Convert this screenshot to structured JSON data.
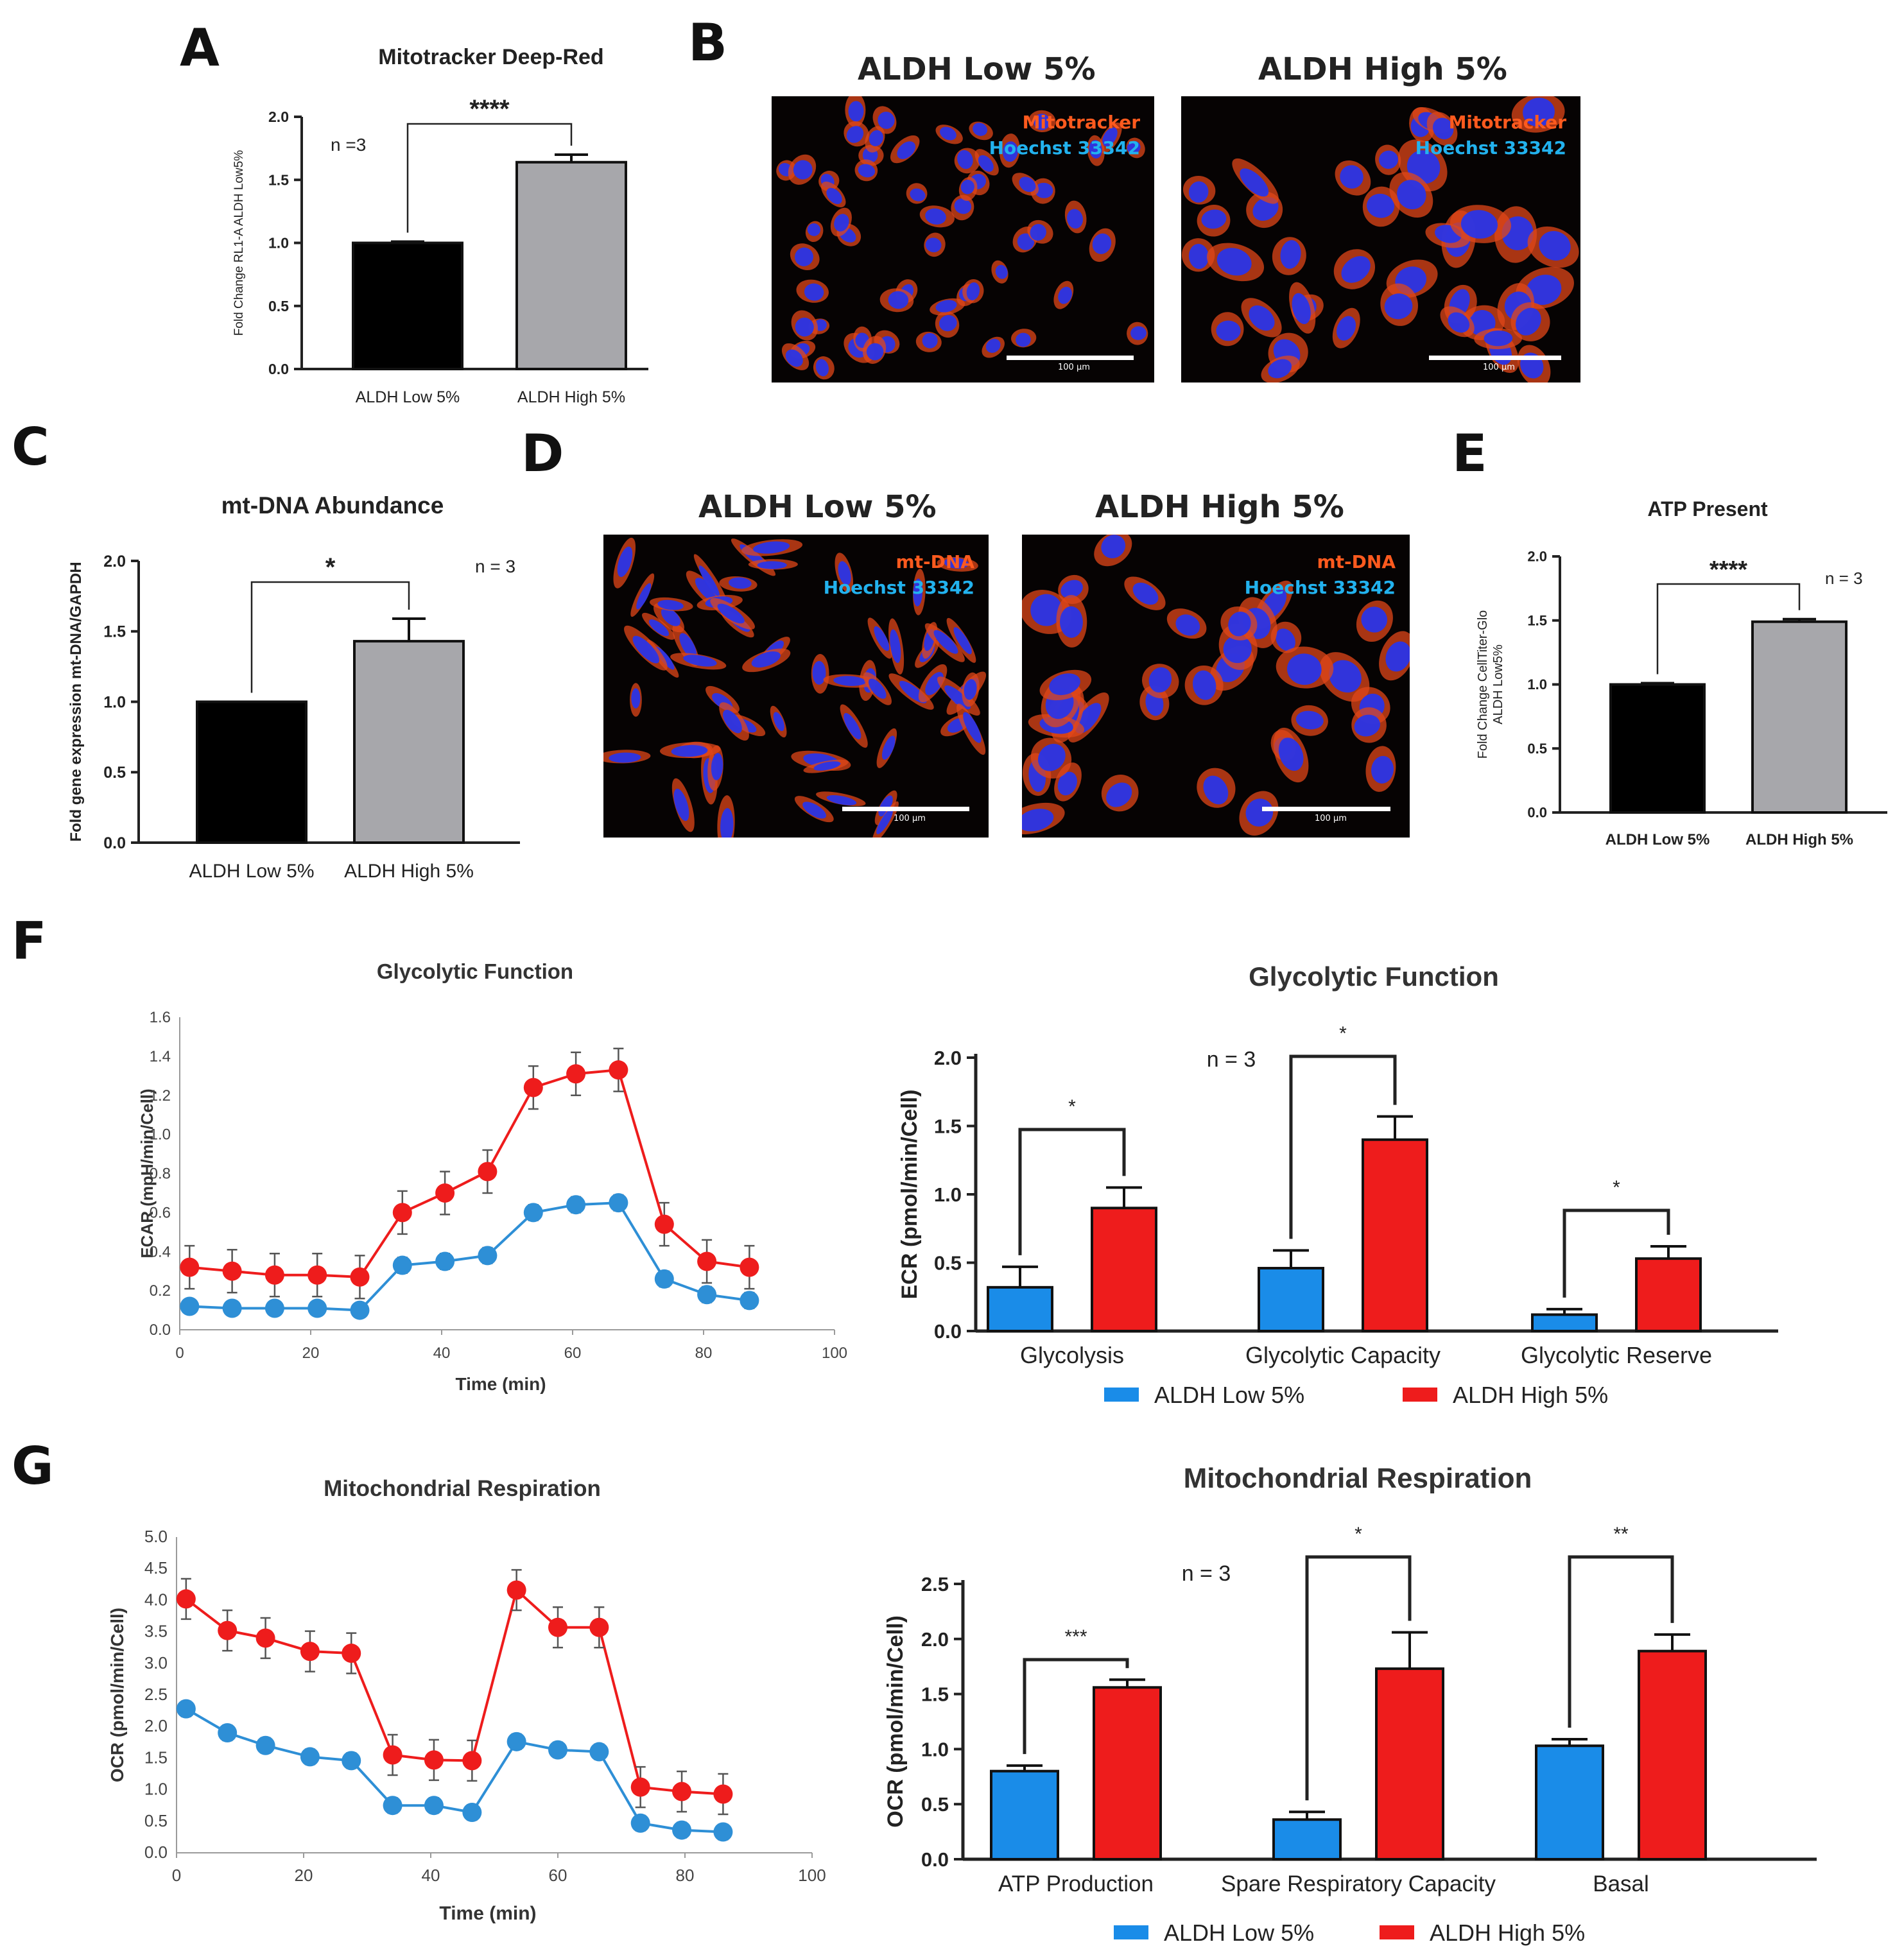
{
  "panels": {
    "A": {
      "letter": "A",
      "chart_data": {
        "type": "bar",
        "title": "Mitotracker Deep-Red",
        "ylabel": "Fold Change RL1-A ALDH Low5%",
        "categories": [
          "ALDH Low 5%",
          "ALDH High 5%"
        ],
        "values": [
          1.0,
          1.64
        ],
        "errors": [
          0.01,
          0.06
        ],
        "colors": [
          "#000000",
          "#a7a7ab"
        ],
        "ylim": [
          0,
          2.0
        ],
        "yticks": [
          "0.0",
          "0.5",
          "1.0",
          "1.5",
          "2.0"
        ],
        "n_label": "n =3",
        "significance": "****"
      }
    },
    "B": {
      "letter": "B",
      "images": [
        {
          "title": "ALDH Low 5%",
          "stain_red": "Mitotracker",
          "stain_blue": "Hoechst 33342",
          "scale": "100 µm"
        },
        {
          "title": "ALDH High 5%",
          "stain_red": "Mitotracker",
          "stain_blue": "Hoechst 33342",
          "scale": "100 µm"
        }
      ]
    },
    "C": {
      "letter": "C",
      "chart_data": {
        "type": "bar",
        "title": "mt-DNA Abundance",
        "ylabel": "Fold gene expression mt-DNA/GAPDH",
        "categories": [
          "ALDH Low 5%",
          "ALDH High 5%"
        ],
        "values": [
          1.0,
          1.43
        ],
        "errors": [
          0.0,
          0.16
        ],
        "colors": [
          "#000000",
          "#a7a7ab"
        ],
        "ylim": [
          0,
          2.0
        ],
        "yticks": [
          "0.0",
          "0.5",
          "1.0",
          "1.5",
          "2.0"
        ],
        "n_label": "n = 3",
        "significance": "*"
      }
    },
    "D": {
      "letter": "D",
      "images": [
        {
          "title": "ALDH Low 5%",
          "stain_red": "mt-DNA",
          "stain_blue": "Hoechst 33342",
          "scale": "100 µm"
        },
        {
          "title": "ALDH High 5%",
          "stain_red": "mt-DNA",
          "stain_blue": "Hoechst 33342",
          "scale": "100 µm"
        }
      ]
    },
    "E": {
      "letter": "E",
      "chart_data": {
        "type": "bar",
        "title": "ATP Present",
        "ylabel": "Fold Change CellTiter-Glo",
        "ylabel2": "ALDH Low5%",
        "categories": [
          "ALDH Low 5%",
          "ALDH High 5%"
        ],
        "values": [
          1.0,
          1.49
        ],
        "errors": [
          0.01,
          0.02
        ],
        "colors": [
          "#000000",
          "#a7a7ab"
        ],
        "ylim": [
          0,
          2.0
        ],
        "yticks": [
          "0.0",
          "0.5",
          "1.0",
          "1.5",
          "2.0"
        ],
        "n_label": "n = 3",
        "significance": "****"
      }
    },
    "F": {
      "letter": "F",
      "line": {
        "chart_data": {
          "type": "line",
          "title": "Glycolytic Function",
          "xlabel": "Time (min)",
          "ylabel": "ECAR (mpH/min/Cell)",
          "xlim": [
            0,
            100
          ],
          "ylim": [
            0,
            1.6
          ],
          "xticks": [
            "0",
            "20",
            "40",
            "60",
            "80",
            "100"
          ],
          "yticks": [
            "0.0",
            "0.2",
            "0.4",
            "0.6",
            "0.8",
            "1.0",
            "1.2",
            "1.4",
            "1.6"
          ],
          "x": [
            1.5,
            8,
            14.5,
            21,
            27.5,
            34,
            40.5,
            47,
            54,
            60.5,
            67,
            74,
            80.5,
            87
          ],
          "series": [
            {
              "name": "ALDH Low 5%",
              "color": "#2e8fd6",
              "values": [
                0.12,
                0.11,
                0.11,
                0.11,
                0.1,
                0.33,
                0.35,
                0.38,
                0.6,
                0.64,
                0.65,
                0.26,
                0.18,
                0.15
              ],
              "errors": [
                0.03,
                0.03,
                0.03,
                0.03,
                0.03,
                0.04,
                0.04,
                0.04,
                0.04,
                0.04,
                0.04,
                0.04,
                0.04,
                0.04
              ]
            },
            {
              "name": "ALDH High 5%",
              "color": "#ee1c1c",
              "values": [
                0.32,
                0.3,
                0.28,
                0.28,
                0.27,
                0.6,
                0.7,
                0.81,
                1.24,
                1.31,
                1.33,
                0.54,
                0.35,
                0.32
              ],
              "errors": [
                0.11,
                0.11,
                0.11,
                0.11,
                0.11,
                0.11,
                0.11,
                0.11,
                0.11,
                0.11,
                0.11,
                0.11,
                0.11,
                0.11
              ]
            }
          ]
        }
      },
      "bar": {
        "chart_data": {
          "type": "bar",
          "title": "Glycolytic Function",
          "ylabel": "ECR (pmol/min/Cell)",
          "categories": [
            "Glycolysis",
            "Glycolytic Capacity",
            "Glycolytic Reserve"
          ],
          "ylim": [
            0,
            2.0
          ],
          "yticks": [
            "0.0",
            "0.5",
            "1.0",
            "1.5",
            "2.0"
          ],
          "series": [
            {
              "name": "ALDH Low 5%",
              "color": "#1a8ce8",
              "values": [
                0.32,
                0.46,
                0.12
              ],
              "errors": [
                0.15,
                0.13,
                0.04
              ]
            },
            {
              "name": "ALDH High 5%",
              "color": "#ee1c1c",
              "values": [
                0.9,
                1.4,
                0.53
              ],
              "errors": [
                0.15,
                0.17,
                0.09
              ]
            }
          ],
          "significance": [
            "*",
            "*",
            "*"
          ],
          "n_label": "n = 3"
        }
      }
    },
    "G": {
      "letter": "G",
      "line": {
        "chart_data": {
          "type": "line",
          "title": "Mitochondrial Respiration",
          "xlabel": "Time (min)",
          "ylabel": "OCR (pmol/min/Cell)",
          "xlim": [
            0,
            100
          ],
          "ylim": [
            0,
            5.0
          ],
          "xticks": [
            "0",
            "20",
            "40",
            "60",
            "80",
            "100"
          ],
          "yticks": [
            "0.0",
            "0.5",
            "1.0",
            "1.5",
            "2.0",
            "2.5",
            "3.0",
            "3.5",
            "4.0",
            "4.5",
            "5.0"
          ],
          "x": [
            1.5,
            8,
            14,
            21,
            27.5,
            34,
            40.5,
            46.5,
            53.5,
            60,
            66.5,
            73,
            79.5,
            86
          ],
          "series": [
            {
              "name": "ALDH Low 5%",
              "color": "#2e8fd6",
              "values": [
                2.28,
                1.9,
                1.7,
                1.52,
                1.46,
                0.75,
                0.75,
                0.64,
                1.76,
                1.63,
                1.6,
                0.47,
                0.36,
                0.33
              ],
              "errors": [
                0.12,
                0.12,
                0.12,
                0.12,
                0.12,
                0.12,
                0.12,
                0.12,
                0.12,
                0.12,
                0.12,
                0.12,
                0.12,
                0.12
              ]
            },
            {
              "name": "ALDH High 5%",
              "color": "#ee1c1c",
              "values": [
                4.02,
                3.52,
                3.4,
                3.19,
                3.16,
                1.55,
                1.47,
                1.46,
                4.16,
                3.57,
                3.57,
                1.04,
                0.97,
                0.93
              ],
              "errors": [
                0.32,
                0.32,
                0.32,
                0.32,
                0.32,
                0.32,
                0.32,
                0.32,
                0.32,
                0.32,
                0.32,
                0.32,
                0.32,
                0.32
              ]
            }
          ]
        }
      },
      "bar": {
        "chart_data": {
          "type": "bar",
          "title": "Mitochondrial Respiration",
          "ylabel": "OCR (pmol/min/Cell)",
          "categories": [
            "ATP Production",
            "Spare Respiratory Capacity",
            "Basal"
          ],
          "ylim": [
            0,
            2.5
          ],
          "yticks": [
            "0.0",
            "0.5",
            "1.0",
            "1.5",
            "2.0",
            "2.5"
          ],
          "series": [
            {
              "name": "ALDH Low 5%",
              "color": "#1a8ce8",
              "values": [
                0.8,
                0.36,
                1.03
              ],
              "errors": [
                0.05,
                0.07,
                0.06
              ]
            },
            {
              "name": "ALDH High 5%",
              "color": "#ee1c1c",
              "values": [
                1.56,
                1.73,
                1.89
              ],
              "errors": [
                0.07,
                0.33,
                0.15
              ]
            }
          ],
          "significance": [
            "***",
            "*",
            "**"
          ],
          "n_label": "n = 3"
        }
      }
    }
  }
}
